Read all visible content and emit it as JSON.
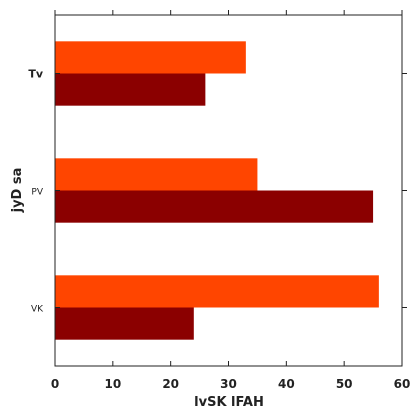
{
  "chart_data": {
    "type": "bar",
    "orientation": "horizontal",
    "xlabel": "lvSK lFAH",
    "ylabel": "jyD sa",
    "xlim": [
      0,
      60
    ],
    "x_ticks": [
      0,
      10,
      20,
      30,
      40,
      50,
      60
    ],
    "x_tick_labels": [
      "0",
      "10",
      "20",
      "30",
      "40",
      "50",
      "60"
    ],
    "categories": [
      "Tv",
      "PV",
      "VK"
    ],
    "series": [
      {
        "color": "#ff4500",
        "values": [
          33,
          35,
          56
        ]
      },
      {
        "color": "#8b0000",
        "values": [
          26,
          55,
          24
        ]
      }
    ],
    "grid": false,
    "legend": "none"
  }
}
